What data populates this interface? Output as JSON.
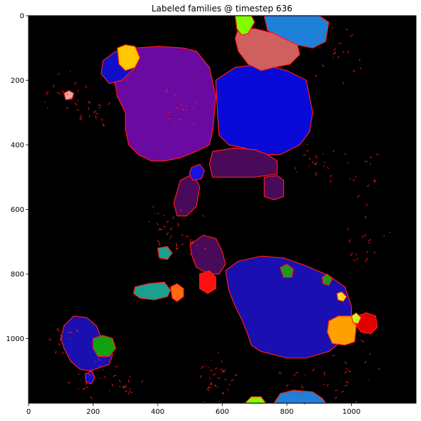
{
  "chart_data": {
    "type": "heatmap",
    "title": "Labeled families @ timestep 636",
    "xlabel": "",
    "ylabel": "",
    "xlim": [
      0,
      1200
    ],
    "ylim": [
      1200,
      0
    ],
    "x_ticks": [
      0,
      200,
      400,
      600,
      800,
      1000
    ],
    "y_ticks": [
      0,
      200,
      400,
      600,
      800,
      1000
    ],
    "background_color": "#000000",
    "boundary_color": "#ff1a1a",
    "grid": false,
    "legend": "none",
    "regions": [
      {
        "name": "purple",
        "color": "#6a0aa0",
        "points": [
          [
            290,
            130
          ],
          [
            330,
            100
          ],
          [
            400,
            95
          ],
          [
            480,
            100
          ],
          [
            520,
            110
          ],
          [
            560,
            160
          ],
          [
            580,
            250
          ],
          [
            570,
            360
          ],
          [
            560,
            400
          ],
          [
            520,
            420
          ],
          [
            470,
            440
          ],
          [
            420,
            450
          ],
          [
            380,
            450
          ],
          [
            340,
            430
          ],
          [
            310,
            400
          ],
          [
            300,
            350
          ],
          [
            300,
            300
          ],
          [
            275,
            250
          ],
          [
            270,
            220
          ],
          [
            260,
            190
          ],
          [
            280,
            160
          ]
        ]
      },
      {
        "name": "blue-large",
        "color": "#0a0ad8",
        "points": [
          [
            580,
            200
          ],
          [
            640,
            160
          ],
          [
            720,
            150
          ],
          [
            800,
            170
          ],
          [
            860,
            200
          ],
          [
            880,
            300
          ],
          [
            870,
            360
          ],
          [
            840,
            400
          ],
          [
            780,
            430
          ],
          [
            720,
            430
          ],
          [
            670,
            410
          ],
          [
            620,
            400
          ],
          [
            590,
            370
          ],
          [
            585,
            300
          ]
        ]
      },
      {
        "name": "blue-navy",
        "color": "#1a0fb0",
        "points": [
          [
            610,
            790
          ],
          [
            650,
            760
          ],
          [
            720,
            745
          ],
          [
            790,
            750
          ],
          [
            860,
            775
          ],
          [
            930,
            805
          ],
          [
            980,
            840
          ],
          [
            1000,
            900
          ],
          [
            1000,
            960
          ],
          [
            980,
            1000
          ],
          [
            930,
            1040
          ],
          [
            860,
            1060
          ],
          [
            800,
            1060
          ],
          [
            760,
            1050
          ],
          [
            720,
            1040
          ],
          [
            690,
            1020
          ],
          [
            680,
            990
          ],
          [
            660,
            940
          ],
          [
            640,
            900
          ],
          [
            620,
            850
          ]
        ]
      },
      {
        "name": "navy-small",
        "color": "#1a0fb0",
        "points": [
          [
            110,
            960
          ],
          [
            140,
            930
          ],
          [
            180,
            935
          ],
          [
            210,
            960
          ],
          [
            230,
            1010
          ],
          [
            260,
            1050
          ],
          [
            250,
            1080
          ],
          [
            220,
            1090
          ],
          [
            190,
            1100
          ],
          [
            160,
            1095
          ],
          [
            130,
            1070
          ],
          [
            110,
            1030
          ],
          [
            100,
            1000
          ]
        ]
      },
      {
        "name": "dark-purple",
        "color": "#4a0a5a",
        "points": [
          [
            570,
            420
          ],
          [
            640,
            410
          ],
          [
            700,
            415
          ],
          [
            740,
            430
          ],
          [
            770,
            450
          ],
          [
            770,
            490
          ],
          [
            700,
            500
          ],
          [
            620,
            500
          ],
          [
            570,
            500
          ],
          [
            560,
            460
          ]
        ]
      },
      {
        "name": "dark-purple-2",
        "color": "#4a0a5a",
        "points": [
          [
            500,
            710
          ],
          [
            540,
            680
          ],
          [
            580,
            690
          ],
          [
            600,
            730
          ],
          [
            610,
            770
          ],
          [
            590,
            800
          ],
          [
            560,
            800
          ],
          [
            520,
            780
          ],
          [
            505,
            740
          ]
        ]
      },
      {
        "name": "dark-purple-3",
        "color": "#4a0a5a",
        "points": [
          [
            730,
            500
          ],
          [
            770,
            495
          ],
          [
            790,
            510
          ],
          [
            790,
            560
          ],
          [
            760,
            570
          ],
          [
            730,
            560
          ]
        ]
      },
      {
        "name": "dark-purple-4",
        "color": "#4a0a5a",
        "points": [
          [
            470,
            510
          ],
          [
            510,
            490
          ],
          [
            530,
            530
          ],
          [
            520,
            590
          ],
          [
            490,
            620
          ],
          [
            460,
            620
          ],
          [
            450,
            580
          ]
        ]
      },
      {
        "name": "salmon",
        "color": "#d06060",
        "points": [
          [
            650,
            40
          ],
          [
            700,
            40
          ],
          [
            740,
            50
          ],
          [
            790,
            60
          ],
          [
            830,
            80
          ],
          [
            840,
            120
          ],
          [
            810,
            150
          ],
          [
            760,
            160
          ],
          [
            720,
            170
          ],
          [
            680,
            150
          ],
          [
            650,
            110
          ],
          [
            640,
            70
          ]
        ]
      },
      {
        "name": "light-blue",
        "color": "#1e80d8",
        "points": [
          [
            730,
            0
          ],
          [
            900,
            0
          ],
          [
            930,
            20
          ],
          [
            920,
            80
          ],
          [
            880,
            100
          ],
          [
            830,
            90
          ],
          [
            790,
            70
          ],
          [
            740,
            45
          ]
        ]
      },
      {
        "name": "blue-left",
        "color": "#1010cc",
        "points": [
          [
            230,
            140
          ],
          [
            270,
            110
          ],
          [
            310,
            120
          ],
          [
            330,
            160
          ],
          [
            290,
            200
          ],
          [
            250,
            210
          ],
          [
            225,
            180
          ]
        ]
      },
      {
        "name": "yellow",
        "color": "#ffc800",
        "points": [
          [
            275,
            100
          ],
          [
            300,
            90
          ],
          [
            330,
            95
          ],
          [
            345,
            130
          ],
          [
            330,
            160
          ],
          [
            300,
            170
          ],
          [
            280,
            150
          ]
        ]
      },
      {
        "name": "orange-right",
        "color": "#ffa000",
        "points": [
          [
            930,
            945
          ],
          [
            960,
            930
          ],
          [
            1000,
            930
          ],
          [
            1015,
            960
          ],
          [
            1010,
            1010
          ],
          [
            980,
            1020
          ],
          [
            940,
            1015
          ],
          [
            925,
            980
          ]
        ]
      },
      {
        "name": "red-right",
        "color": "#e00000",
        "points": [
          [
            1020,
            930
          ],
          [
            1045,
            920
          ],
          [
            1075,
            930
          ],
          [
            1080,
            965
          ],
          [
            1060,
            985
          ],
          [
            1030,
            980
          ],
          [
            1015,
            960
          ]
        ]
      },
      {
        "name": "teal",
        "color": "#1aa090",
        "points": [
          [
            330,
            840
          ],
          [
            370,
            830
          ],
          [
            420,
            825
          ],
          [
            440,
            850
          ],
          [
            430,
            870
          ],
          [
            390,
            880
          ],
          [
            345,
            875
          ],
          [
            325,
            860
          ]
        ]
      },
      {
        "name": "teal-small",
        "color": "#1aa090",
        "points": [
          [
            400,
            720
          ],
          [
            430,
            715
          ],
          [
            445,
            735
          ],
          [
            430,
            755
          ],
          [
            405,
            750
          ]
        ]
      },
      {
        "name": "orange-mid",
        "color": "#ff6a10",
        "points": [
          [
            440,
            840
          ],
          [
            460,
            830
          ],
          [
            480,
            845
          ],
          [
            480,
            870
          ],
          [
            460,
            885
          ],
          [
            445,
            875
          ]
        ]
      },
      {
        "name": "red-mid",
        "color": "#ff1010",
        "points": [
          [
            530,
            800
          ],
          [
            560,
            790
          ],
          [
            580,
            810
          ],
          [
            580,
            845
          ],
          [
            555,
            860
          ],
          [
            530,
            845
          ]
        ]
      },
      {
        "name": "green-left",
        "color": "#10a010",
        "points": [
          [
            200,
            1000
          ],
          [
            230,
            990
          ],
          [
            260,
            1000
          ],
          [
            270,
            1030
          ],
          [
            250,
            1055
          ],
          [
            215,
            1055
          ],
          [
            200,
            1030
          ]
        ]
      },
      {
        "name": "green-right-1",
        "color": "#1a9a1a",
        "points": [
          [
            780,
            780
          ],
          [
            800,
            770
          ],
          [
            820,
            785
          ],
          [
            815,
            810
          ],
          [
            790,
            810
          ]
        ]
      },
      {
        "name": "green-right-2",
        "color": "#1a9a1a",
        "points": [
          [
            910,
            810
          ],
          [
            925,
            800
          ],
          [
            940,
            815
          ],
          [
            930,
            835
          ],
          [
            912,
            830
          ]
        ]
      },
      {
        "name": "lime-top",
        "color": "#80ff00",
        "points": [
          [
            640,
            0
          ],
          [
            690,
            0
          ],
          [
            700,
            20
          ],
          [
            680,
            55
          ],
          [
            660,
            60
          ],
          [
            645,
            40
          ]
        ]
      },
      {
        "name": "lime-right",
        "color": "#c8ff20",
        "points": [
          [
            1000,
            930
          ],
          [
            1015,
            920
          ],
          [
            1030,
            935
          ],
          [
            1020,
            955
          ],
          [
            1005,
            950
          ]
        ]
      },
      {
        "name": "yellow-right",
        "color": "#ffe020",
        "points": [
          [
            955,
            860
          ],
          [
            970,
            855
          ],
          [
            985,
            870
          ],
          [
            975,
            885
          ],
          [
            958,
            880
          ]
        ]
      },
      {
        "name": "pink",
        "color": "#ddaaaa",
        "points": [
          [
            110,
            240
          ],
          [
            125,
            232
          ],
          [
            140,
            240
          ],
          [
            135,
            258
          ],
          [
            115,
            260
          ]
        ]
      },
      {
        "name": "light-blue-bottom",
        "color": "#1e80d8",
        "points": [
          [
            760,
            1200
          ],
          [
            780,
            1170
          ],
          [
            820,
            1160
          ],
          [
            880,
            1165
          ],
          [
            910,
            1185
          ],
          [
            920,
            1200
          ]
        ]
      },
      {
        "name": "blue-mid-2",
        "color": "#1a10e0",
        "points": [
          [
            505,
            470
          ],
          [
            530,
            460
          ],
          [
            545,
            480
          ],
          [
            535,
            505
          ],
          [
            510,
            510
          ],
          [
            498,
            490
          ]
        ]
      },
      {
        "name": "lime-bottom",
        "color": "#80ff00",
        "points": [
          [
            670,
            1200
          ],
          [
            690,
            1180
          ],
          [
            720,
            1180
          ],
          [
            735,
            1200
          ]
        ]
      },
      {
        "name": "blue-small-bottom",
        "color": "#1010cc",
        "points": [
          [
            175,
            1110
          ],
          [
            195,
            1100
          ],
          [
            205,
            1120
          ],
          [
            195,
            1140
          ],
          [
            178,
            1135
          ]
        ]
      }
    ]
  }
}
